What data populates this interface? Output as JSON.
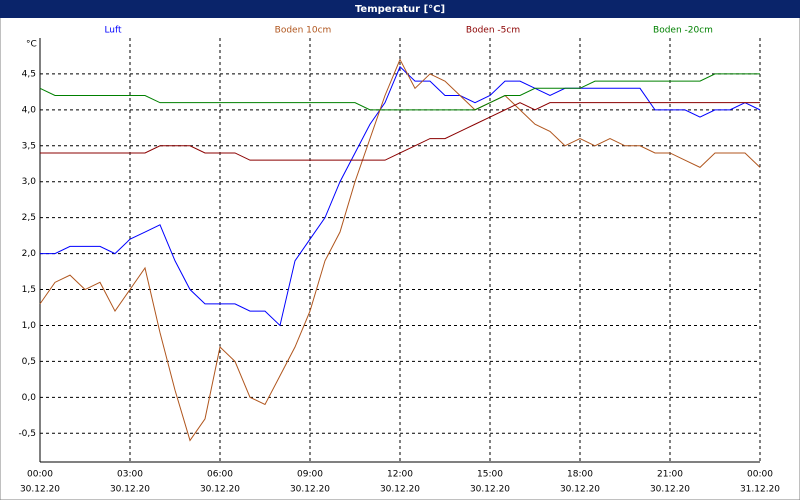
{
  "chart_data": {
    "type": "line",
    "title": "Temperatur [°C]",
    "y_unit": "°C",
    "x": [
      0,
      0.5,
      1,
      1.5,
      2,
      2.5,
      3,
      3.5,
      4,
      4.5,
      5,
      5.5,
      6,
      6.5,
      7,
      7.5,
      8,
      8.5,
      9,
      9.5,
      10,
      10.5,
      11,
      11.5,
      12,
      12.5,
      13,
      13.5,
      14,
      14.5,
      15,
      15.5,
      16,
      16.5,
      17,
      17.5,
      18,
      18.5,
      19,
      19.5,
      20,
      20.5,
      21,
      21.5,
      22,
      22.5,
      23,
      23.5,
      24
    ],
    "series": [
      {
        "name": "Luft",
        "color": "#0000ff",
        "values": [
          2.0,
          2.0,
          2.1,
          2.1,
          2.1,
          2.0,
          2.2,
          2.3,
          2.4,
          1.9,
          1.5,
          1.3,
          1.3,
          1.3,
          1.2,
          1.2,
          1.0,
          1.9,
          2.2,
          2.5,
          3.0,
          3.4,
          3.8,
          4.1,
          4.6,
          4.4,
          4.4,
          4.2,
          4.2,
          4.1,
          4.2,
          4.4,
          4.4,
          4.3,
          4.2,
          4.3,
          4.3,
          4.3,
          4.3,
          4.3,
          4.3,
          4.0,
          4.0,
          4.0,
          3.9,
          4.0,
          4.0,
          4.1,
          4.0
        ]
      },
      {
        "name": "Boden 10cm",
        "color": "#b0561e",
        "values": [
          1.3,
          1.6,
          1.7,
          1.5,
          1.6,
          1.2,
          1.5,
          1.8,
          0.9,
          0.1,
          -0.6,
          -0.3,
          0.7,
          0.5,
          0.0,
          -0.1,
          0.3,
          0.7,
          1.2,
          1.9,
          2.3,
          3.0,
          3.6,
          4.2,
          4.7,
          4.3,
          4.5,
          4.4,
          4.2,
          4.0,
          4.1,
          4.2,
          4.0,
          3.8,
          3.7,
          3.5,
          3.6,
          3.5,
          3.6,
          3.5,
          3.5,
          3.4,
          3.4,
          3.3,
          3.2,
          3.4,
          3.4,
          3.4,
          3.2
        ]
      },
      {
        "name": "Boden -5cm",
        "color": "#8b0000",
        "values": [
          3.4,
          3.4,
          3.4,
          3.4,
          3.4,
          3.4,
          3.4,
          3.4,
          3.5,
          3.5,
          3.5,
          3.4,
          3.4,
          3.4,
          3.3,
          3.3,
          3.3,
          3.3,
          3.3,
          3.3,
          3.3,
          3.3,
          3.3,
          3.3,
          3.4,
          3.5,
          3.6,
          3.6,
          3.7,
          3.8,
          3.9,
          4.0,
          4.1,
          4.0,
          4.1,
          4.1,
          4.1,
          4.1,
          4.1,
          4.1,
          4.1,
          4.1,
          4.1,
          4.1,
          4.1,
          4.1,
          4.1,
          4.1,
          4.1
        ]
      },
      {
        "name": "Boden -20cm",
        "color": "#008000",
        "values": [
          4.3,
          4.2,
          4.2,
          4.2,
          4.2,
          4.2,
          4.2,
          4.2,
          4.1,
          4.1,
          4.1,
          4.1,
          4.1,
          4.1,
          4.1,
          4.1,
          4.1,
          4.1,
          4.1,
          4.1,
          4.1,
          4.1,
          4.0,
          4.0,
          4.0,
          4.0,
          4.0,
          4.0,
          4.0,
          4.0,
          4.1,
          4.2,
          4.2,
          4.3,
          4.3,
          4.3,
          4.3,
          4.4,
          4.4,
          4.4,
          4.4,
          4.4,
          4.4,
          4.4,
          4.4,
          4.5,
          4.5,
          4.5,
          4.5
        ]
      }
    ],
    "xlim": [
      0,
      24
    ],
    "xticks": [
      {
        "value": 0,
        "label": "00:00"
      },
      {
        "value": 3,
        "label": "03:00"
      },
      {
        "value": 6,
        "label": "06:00"
      },
      {
        "value": 9,
        "label": "09:00"
      },
      {
        "value": 12,
        "label": "12:00"
      },
      {
        "value": 15,
        "label": "15:00"
      },
      {
        "value": 18,
        "label": "18:00"
      },
      {
        "value": 21,
        "label": "21:00"
      },
      {
        "value": 24,
        "label": "00:00"
      }
    ],
    "xtick_dates": [
      "30.12.20",
      "30.12.20",
      "30.12.20",
      "30.12.20",
      "30.12.20",
      "30.12.20",
      "30.12.20",
      "30.12.20",
      "31.12.20"
    ],
    "ylim": [
      -0.9,
      5.0
    ],
    "yticks": [
      {
        "value": -0.5,
        "label": "-0,5"
      },
      {
        "value": 0,
        "label": "0,0"
      },
      {
        "value": 0.5,
        "label": "0,5"
      },
      {
        "value": 1,
        "label": "1,0"
      },
      {
        "value": 1.5,
        "label": "1,5"
      },
      {
        "value": 2,
        "label": "2,0"
      },
      {
        "value": 2.5,
        "label": "2,5"
      },
      {
        "value": 3,
        "label": "3,0"
      },
      {
        "value": 3.5,
        "label": "3,5"
      },
      {
        "value": 4,
        "label": "4,0"
      },
      {
        "value": 4.5,
        "label": "4,5"
      }
    ],
    "grid": true
  }
}
